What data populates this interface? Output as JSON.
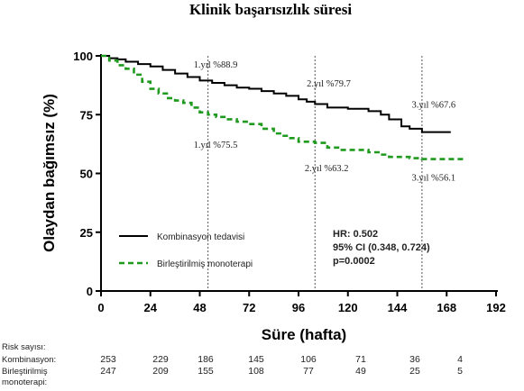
{
  "chart_data": {
    "type": "line",
    "title": "Klinik başarısızlık süresi",
    "xlabel": "Süre (hafta)",
    "ylabel": "Olaydan bağımsız (%)",
    "xlim": [
      0,
      192
    ],
    "ylim": [
      0,
      100
    ],
    "x_ticks": [
      "0",
      "24",
      "48",
      "72",
      "96",
      "120",
      "144",
      "168",
      "192"
    ],
    "y_ticks": [
      "0",
      "25",
      "50",
      "75",
      "100"
    ],
    "series": [
      {
        "name": "Kombinasyon tedavisi",
        "color": "#000000",
        "dash": "solid",
        "points": [
          [
            0,
            100
          ],
          [
            4,
            99
          ],
          [
            8,
            98.5
          ],
          [
            12,
            97.5
          ],
          [
            18,
            96.5
          ],
          [
            24,
            95.5
          ],
          [
            30,
            94
          ],
          [
            36,
            92.5
          ],
          [
            42,
            91
          ],
          [
            48,
            89.5
          ],
          [
            54,
            88.5
          ],
          [
            60,
            87.5
          ],
          [
            66,
            86.5
          ],
          [
            72,
            86
          ],
          [
            78,
            85
          ],
          [
            84,
            84
          ],
          [
            90,
            83
          ],
          [
            96,
            81.5
          ],
          [
            100,
            80.5
          ],
          [
            104,
            79.5
          ],
          [
            110,
            78
          ],
          [
            120,
            77.5
          ],
          [
            130,
            76.5
          ],
          [
            136,
            75
          ],
          [
            140,
            73
          ],
          [
            146,
            70
          ],
          [
            150,
            69
          ],
          [
            156,
            67.6
          ],
          [
            170,
            67.6
          ]
        ]
      },
      {
        "name": "Birleştirilmiş monoterapi",
        "color": "#1f9a1f",
        "dash": "dashed",
        "points": [
          [
            0,
            100
          ],
          [
            4,
            98
          ],
          [
            8,
            96
          ],
          [
            12,
            94.5
          ],
          [
            16,
            92
          ],
          [
            20,
            89
          ],
          [
            24,
            86
          ],
          [
            28,
            84
          ],
          [
            32,
            82
          ],
          [
            36,
            81
          ],
          [
            40,
            80
          ],
          [
            44,
            78
          ],
          [
            48,
            76
          ],
          [
            52,
            75
          ],
          [
            56,
            74
          ],
          [
            60,
            73
          ],
          [
            66,
            72
          ],
          [
            72,
            71
          ],
          [
            78,
            69
          ],
          [
            84,
            67
          ],
          [
            88,
            66
          ],
          [
            92,
            65
          ],
          [
            96,
            63.5
          ],
          [
            104,
            63
          ],
          [
            110,
            61
          ],
          [
            116,
            60
          ],
          [
            124,
            60
          ],
          [
            130,
            59
          ],
          [
            136,
            58
          ],
          [
            140,
            57
          ],
          [
            150,
            56.5
          ],
          [
            156,
            56.1
          ],
          [
            176,
            56.1
          ]
        ]
      }
    ],
    "vlines": [
      52,
      104,
      156
    ],
    "annotations": [
      {
        "text": "1.yıl %88.9",
        "x": 45,
        "y": 95,
        "anchor": "start"
      },
      {
        "text": "1.yıl %75.5",
        "x": 45,
        "y": 61,
        "anchor": "start"
      },
      {
        "text": "2.yıl %79.7",
        "x": 100,
        "y": 87,
        "anchor": "start"
      },
      {
        "text": "2.yıl %63.2",
        "x": 99,
        "y": 51,
        "anchor": "start"
      },
      {
        "text": "3.yıl %67.6",
        "x": 151,
        "y": 78,
        "anchor": "start"
      },
      {
        "text": "3.yıl %56.1",
        "x": 151,
        "y": 47,
        "anchor": "start"
      }
    ],
    "legend": {
      "position": "bottom-left",
      "items": [
        "Kombinasyon tedavisi",
        "Birleştirilmiş monoterapi"
      ]
    },
    "stats": [
      "HR: 0.502",
      "95% CI (0.348, 0.724)",
      "p=0.0002"
    ],
    "risk_table": {
      "header": "Risk sayısı:",
      "rows": [
        {
          "label": [
            "Kombinasyon:"
          ],
          "values": [
            "253",
            "229",
            "186",
            "145",
            "106",
            "71",
            "36",
            "4"
          ]
        },
        {
          "label": [
            "Birleştirilmiş",
            "monoterapi:"
          ],
          "values": [
            "247",
            "209",
            "155",
            "108",
            "77",
            "49",
            "25",
            "5"
          ]
        }
      ]
    }
  }
}
